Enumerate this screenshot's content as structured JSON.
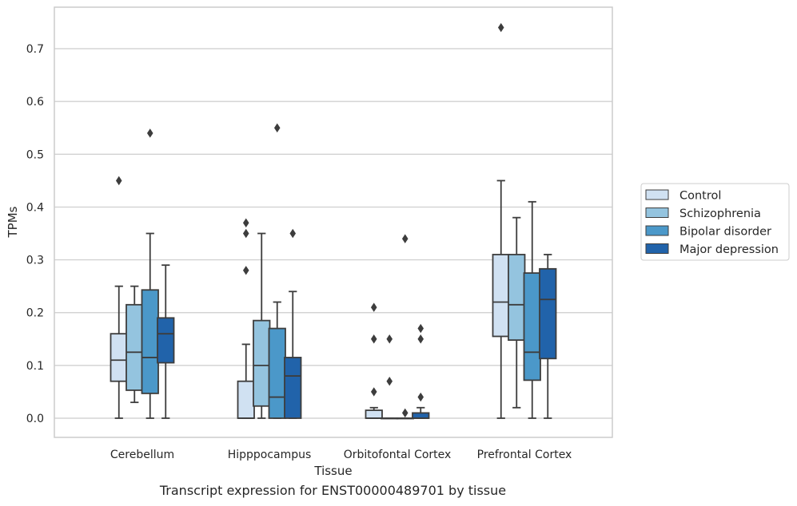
{
  "caption": "Transcript expression for ENST00000489701 by tissue",
  "chart_data": {
    "type": "box",
    "xlabel": "Tissue",
    "ylabel": "TPMs",
    "ylim": [
      -0.035,
      0.775
    ],
    "yticks": [
      0.0,
      0.1,
      0.2,
      0.3,
      0.4,
      0.5,
      0.6,
      0.7
    ],
    "ytick_labels": [
      "0.0",
      "0.1",
      "0.2",
      "0.3",
      "0.4",
      "0.5",
      "0.6",
      "0.7"
    ],
    "grid": "horizontal",
    "legend_position": "right",
    "categories": [
      "Cerebellum",
      "Hipppocampus",
      "Orbitofontal Cortex",
      "Prefrontal Cortex"
    ],
    "series": [
      {
        "name": "Control",
        "color": "#d0e1f2",
        "boxes": [
          {
            "whislo": 0.0,
            "q1": 0.07,
            "med": 0.11,
            "q3": 0.16,
            "whishi": 0.25,
            "fliers": [
              0.45
            ]
          },
          {
            "whislo": 0.0,
            "q1": 0.0,
            "med": 0.0,
            "q3": 0.07,
            "whishi": 0.14,
            "fliers": [
              0.28,
              0.35,
              0.37
            ]
          },
          {
            "whislo": 0.0,
            "q1": 0.0,
            "med": 0.0,
            "q3": 0.015,
            "whishi": 0.02,
            "fliers": [
              0.05,
              0.15,
              0.21
            ]
          },
          {
            "whislo": 0.0,
            "q1": 0.155,
            "med": 0.22,
            "q3": 0.31,
            "whishi": 0.45,
            "fliers": [
              0.74
            ]
          }
        ]
      },
      {
        "name": "Schizophrenia",
        "color": "#94c4df",
        "boxes": [
          {
            "whislo": 0.03,
            "q1": 0.053,
            "med": 0.125,
            "q3": 0.215,
            "whishi": 0.25,
            "fliers": []
          },
          {
            "whislo": 0.0,
            "q1": 0.023,
            "med": 0.1,
            "q3": 0.185,
            "whishi": 0.35,
            "fliers": []
          },
          {
            "whislo": 0.0,
            "q1": 0.0,
            "med": 0.0,
            "q3": 0.0,
            "whishi": 0.0,
            "fliers": [
              0.07,
              0.15
            ]
          },
          {
            "whislo": 0.02,
            "q1": 0.148,
            "med": 0.215,
            "q3": 0.31,
            "whishi": 0.38,
            "fliers": []
          }
        ]
      },
      {
        "name": "Bipolar disorder",
        "color": "#4b98c9",
        "boxes": [
          {
            "whislo": 0.0,
            "q1": 0.047,
            "med": 0.115,
            "q3": 0.243,
            "whishi": 0.35,
            "fliers": [
              0.54
            ]
          },
          {
            "whislo": 0.0,
            "q1": 0.0,
            "med": 0.04,
            "q3": 0.17,
            "whishi": 0.22,
            "fliers": [
              0.55
            ]
          },
          {
            "whislo": 0.0,
            "q1": 0.0,
            "med": 0.0,
            "q3": 0.0,
            "whishi": 0.0,
            "fliers": [
              0.01,
              0.34
            ]
          },
          {
            "whislo": 0.0,
            "q1": 0.072,
            "med": 0.125,
            "q3": 0.275,
            "whishi": 0.41,
            "fliers": []
          }
        ]
      },
      {
        "name": "Major depression",
        "color": "#2163aa",
        "boxes": [
          {
            "whislo": 0.0,
            "q1": 0.105,
            "med": 0.16,
            "q3": 0.19,
            "whishi": 0.29,
            "fliers": []
          },
          {
            "whislo": 0.0,
            "q1": 0.0,
            "med": 0.08,
            "q3": 0.115,
            "whishi": 0.24,
            "fliers": [
              0.35
            ]
          },
          {
            "whislo": 0.0,
            "q1": 0.0,
            "med": 0.0,
            "q3": 0.01,
            "whishi": 0.02,
            "fliers": [
              0.04,
              0.15,
              0.17
            ]
          },
          {
            "whislo": 0.0,
            "q1": 0.113,
            "med": 0.225,
            "q3": 0.283,
            "whishi": 0.31,
            "fliers": []
          }
        ]
      }
    ]
  }
}
